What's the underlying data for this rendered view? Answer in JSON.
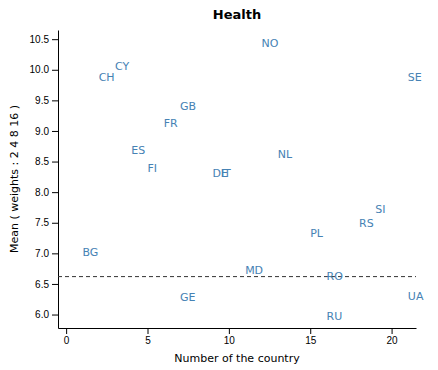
{
  "chart_data": {
    "type": "scatter",
    "title": "Health",
    "x_label": "Number of the country",
    "y_label": "Mean ( weights : 2  4  8  16 )",
    "labels": [
      "BG",
      "CY",
      "CH",
      "ES",
      "FI",
      "FR",
      "GB",
      "DE",
      "IT",
      "GE",
      "MD",
      "NO",
      "NL",
      "PL",
      "RO",
      "RS",
      "RU",
      "SE",
      "SI",
      "UA"
    ],
    "x": [
      1,
      3.0,
      2.0,
      4.0,
      5.0,
      6.0,
      7.0,
      9.0,
      9.5,
      7.0,
      11.0,
      12.0,
      13.0,
      15.0,
      16.0,
      18.0,
      16.0,
      21.0,
      19.0,
      21.0
    ],
    "values": [
      7.02,
      10.05,
      9.87,
      8.68,
      8.38,
      9.12,
      9.4,
      8.3,
      8.3,
      6.28,
      6.72,
      10.43,
      8.62,
      7.33,
      6.62,
      7.48,
      5.97,
      9.88,
      7.72,
      6.3
    ],
    "hline": 6.62,
    "xlim": [
      -0.5,
      21.5
    ],
    "ylim": [
      5.78,
      10.65
    ],
    "xticks": [
      0,
      5,
      10,
      15,
      20
    ],
    "yticks": [
      {
        "value": 6.0,
        "label": "6.0"
      },
      {
        "value": 6.5,
        "label": "6.5"
      },
      {
        "value": 7.0,
        "label": "7.0"
      },
      {
        "value": 7.5,
        "label": "7.5"
      },
      {
        "value": 8.0,
        "label": "8.0"
      },
      {
        "value": 8.5,
        "label": "8.5"
      },
      {
        "value": 9.0,
        "label": "9.0"
      },
      {
        "value": 9.5,
        "label": "9.5"
      },
      {
        "value": 10.0,
        "label": "10.0"
      },
      {
        "value": 10.5,
        "label": "10.5"
      }
    ],
    "grid": false
  }
}
